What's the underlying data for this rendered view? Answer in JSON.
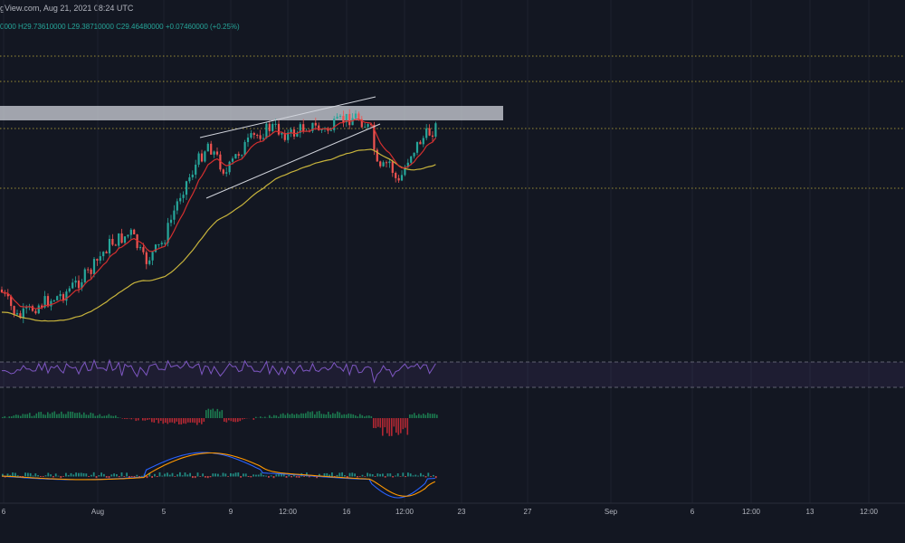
{
  "header": {
    "source_date": "gView.com, Aug 21, 2021 08:24 UTC",
    "ohlc": "0000  H29.73610000  L29.38710000  C29.46480000  +0.07460000 (+0.25%)"
  },
  "colors": {
    "background": "#131722",
    "up": "#26a69a",
    "down": "#ef5350",
    "ema_fast": "#d32f2f",
    "ema_slow": "#c8b43c",
    "resistance_zone": "#d1d4dc",
    "level_line": "#c8b43c",
    "rsi_line": "#7e57c2",
    "macd_line": "#2962ff",
    "signal_line": "#ff9800"
  },
  "chart_data": [
    {
      "type": "candlestick",
      "panel": "price",
      "series": [
        {
          "name": "EMA fast"
        },
        {
          "name": "EMA slow"
        }
      ],
      "annotations": [
        "rising wedge",
        "resistance zone",
        "dotted horizontal levels"
      ]
    },
    {
      "type": "line",
      "panel": "rsi",
      "bands": [
        30,
        70
      ]
    },
    {
      "type": "bar",
      "panel": "momentum histogram"
    },
    {
      "type": "line",
      "panel": "macd",
      "series": [
        {
          "name": "MACD"
        },
        {
          "name": "Signal"
        }
      ]
    }
  ],
  "x_axis": {
    "ticks": [
      "6",
      "Aug",
      "5",
      "9",
      "12:00",
      "16",
      "12:00",
      "23",
      "27",
      "Sep",
      "6",
      "12:00",
      "13",
      "12:00"
    ]
  }
}
